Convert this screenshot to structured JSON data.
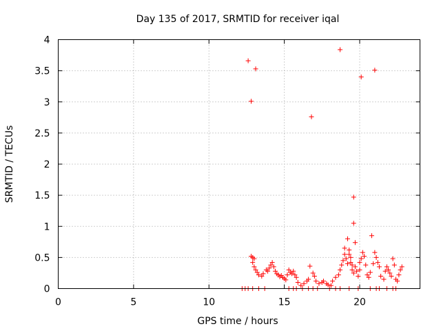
{
  "chart_data": {
    "type": "scatter",
    "title": "Day 135 of 2017, SRMTID for receiver iqal",
    "xlabel": "GPS time / hours",
    "ylabel": "SRMTID / TECUs",
    "xlim": [
      0,
      24
    ],
    "ylim": [
      0,
      4
    ],
    "x_ticks": [
      0,
      5,
      10,
      15,
      20
    ],
    "y_ticks": [
      0,
      0.5,
      1,
      1.5,
      2,
      2.5,
      3,
      3.5,
      4
    ],
    "x_tick_labels": [
      "0",
      "5",
      "10",
      "15",
      "20"
    ],
    "y_tick_labels": [
      "0",
      "0.5",
      "1",
      "1.5",
      "2",
      "2.5",
      "3",
      "3.5",
      "4"
    ],
    "grid": true,
    "marker": "+",
    "series": [
      {
        "name": "SRMTID",
        "color": "#ff0000",
        "points": [
          [
            12.6,
            3.66
          ],
          [
            12.8,
            3.01
          ],
          [
            13.1,
            3.53
          ],
          [
            16.8,
            2.76
          ],
          [
            18.7,
            3.84
          ],
          [
            20.1,
            3.4
          ],
          [
            21.0,
            3.51
          ],
          [
            19.6,
            1.47
          ],
          [
            19.6,
            1.05
          ],
          [
            20.8,
            0.85
          ],
          [
            19.2,
            0.8
          ],
          [
            19.7,
            0.74
          ],
          [
            12.8,
            0.52
          ],
          [
            12.9,
            0.5
          ],
          [
            13.0,
            0.48
          ],
          [
            12.9,
            0.42
          ],
          [
            13.0,
            0.35
          ],
          [
            13.1,
            0.3
          ],
          [
            13.2,
            0.26
          ],
          [
            13.3,
            0.22
          ],
          [
            13.5,
            0.2
          ],
          [
            13.6,
            0.24
          ],
          [
            13.8,
            0.3
          ],
          [
            13.9,
            0.28
          ],
          [
            14.0,
            0.33
          ],
          [
            14.1,
            0.38
          ],
          [
            14.2,
            0.42
          ],
          [
            14.3,
            0.35
          ],
          [
            14.4,
            0.28
          ],
          [
            14.5,
            0.24
          ],
          [
            14.6,
            0.22
          ],
          [
            14.7,
            0.19
          ],
          [
            14.8,
            0.21
          ],
          [
            14.9,
            0.18
          ],
          [
            15.0,
            0.16
          ],
          [
            15.1,
            0.14
          ],
          [
            15.2,
            0.22
          ],
          [
            15.3,
            0.3
          ],
          [
            15.4,
            0.26
          ],
          [
            15.5,
            0.24
          ],
          [
            15.6,
            0.28
          ],
          [
            15.7,
            0.22
          ],
          [
            15.8,
            0.18
          ],
          [
            15.9,
            0.1
          ],
          [
            16.1,
            0.05
          ],
          [
            16.3,
            0.08
          ],
          [
            16.5,
            0.12
          ],
          [
            16.6,
            0.15
          ],
          [
            16.7,
            0.36
          ],
          [
            16.9,
            0.25
          ],
          [
            17.0,
            0.2
          ],
          [
            17.1,
            0.12
          ],
          [
            17.3,
            0.08
          ],
          [
            17.5,
            0.1
          ],
          [
            17.6,
            0.12
          ],
          [
            17.8,
            0.08
          ],
          [
            17.9,
            0.06
          ],
          [
            18.1,
            0.05
          ],
          [
            18.2,
            0.12
          ],
          [
            18.4,
            0.18
          ],
          [
            18.6,
            0.22
          ],
          [
            18.7,
            0.3
          ],
          [
            18.8,
            0.38
          ],
          [
            18.9,
            0.45
          ],
          [
            19.0,
            0.55
          ],
          [
            19.0,
            0.65
          ],
          [
            19.1,
            0.48
          ],
          [
            19.2,
            0.4
          ],
          [
            19.3,
            0.62
          ],
          [
            19.3,
            0.55
          ],
          [
            19.4,
            0.5
          ],
          [
            19.4,
            0.42
          ],
          [
            19.5,
            0.38
          ],
          [
            19.5,
            0.3
          ],
          [
            19.6,
            0.25
          ],
          [
            19.7,
            0.35
          ],
          [
            19.8,
            0.28
          ],
          [
            19.9,
            0.2
          ],
          [
            20.0,
            0.3
          ],
          [
            20.0,
            0.42
          ],
          [
            20.1,
            0.48
          ],
          [
            20.2,
            0.58
          ],
          [
            20.3,
            0.52
          ],
          [
            20.4,
            0.38
          ],
          [
            20.5,
            0.22
          ],
          [
            20.6,
            0.18
          ],
          [
            20.7,
            0.26
          ],
          [
            20.9,
            0.4
          ],
          [
            21.0,
            0.58
          ],
          [
            21.1,
            0.5
          ],
          [
            21.2,
            0.42
          ],
          [
            21.3,
            0.35
          ],
          [
            21.4,
            0.2
          ],
          [
            21.6,
            0.15
          ],
          [
            21.7,
            0.28
          ],
          [
            21.8,
            0.35
          ],
          [
            21.9,
            0.3
          ],
          [
            22.0,
            0.25
          ],
          [
            22.1,
            0.2
          ],
          [
            22.2,
            0.48
          ],
          [
            22.3,
            0.38
          ],
          [
            22.4,
            0.15
          ],
          [
            22.5,
            0.12
          ],
          [
            22.6,
            0.22
          ],
          [
            22.7,
            0.3
          ],
          [
            22.8,
            0.35
          ],
          [
            12.2,
            0.0
          ],
          [
            12.4,
            0.0
          ],
          [
            12.6,
            0.0
          ],
          [
            12.9,
            0.0
          ],
          [
            13.3,
            0.0
          ],
          [
            13.7,
            0.0
          ],
          [
            15.3,
            0.0
          ],
          [
            15.6,
            0.0
          ],
          [
            15.8,
            0.0
          ],
          [
            16.2,
            0.0
          ],
          [
            16.6,
            0.0
          ],
          [
            16.9,
            0.0
          ],
          [
            17.2,
            0.0
          ],
          [
            18.0,
            0.0
          ],
          [
            18.4,
            0.0
          ],
          [
            18.7,
            0.0
          ],
          [
            19.3,
            0.0
          ],
          [
            19.9,
            0.0
          ],
          [
            20.7,
            0.0
          ],
          [
            21.1,
            0.0
          ],
          [
            21.3,
            0.0
          ],
          [
            21.8,
            0.0
          ],
          [
            22.2,
            0.0
          ],
          [
            22.4,
            0.0
          ]
        ]
      }
    ]
  }
}
